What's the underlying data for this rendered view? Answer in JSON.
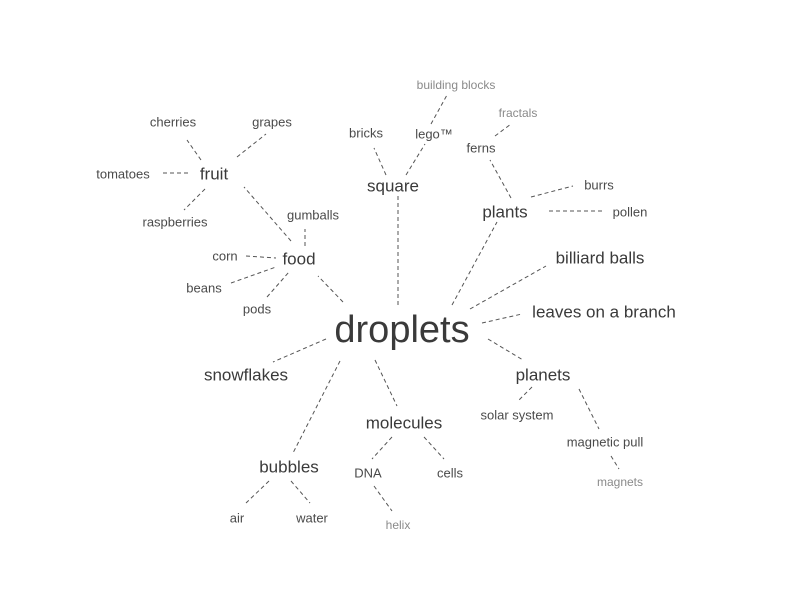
{
  "center": {
    "label": "droplets"
  },
  "topics": {
    "square": "square",
    "plants": "plants",
    "billiard_balls": "billiard balls",
    "leaves": "leaves on a branch",
    "planets": "planets",
    "molecules": "molecules",
    "bubbles": "bubbles",
    "snowflakes": "snowflakes",
    "food": "food",
    "fruit": "fruit"
  },
  "subtopics": {
    "bricks": "bricks",
    "lego": "lego™",
    "ferns": "ferns",
    "burrs": "burrs",
    "pollen": "pollen",
    "solar_system": "solar system",
    "magnetic_pull": "magnetic pull",
    "dna": "DNA",
    "cells": "cells",
    "air": "air",
    "water": "water",
    "gumballs": "gumballs",
    "corn": "corn",
    "beans": "beans",
    "pods": "pods",
    "cherries": "cherries",
    "grapes": "grapes",
    "tomatoes": "tomatoes",
    "raspberries": "raspberries"
  },
  "details": {
    "building_blocks": "building blocks",
    "fractals": "fractals",
    "magnets": "magnets",
    "helix": "helix"
  }
}
